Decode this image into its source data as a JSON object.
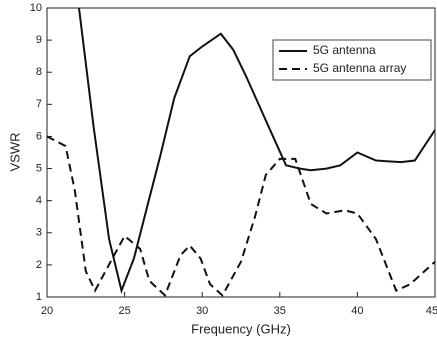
{
  "chart_data": {
    "type": "line",
    "x_label": "Frequency (GHz)",
    "y_label": "VSWR",
    "xlim": [
      20,
      45
    ],
    "xticks": [
      20,
      25,
      30,
      35,
      40,
      45
    ],
    "ylim": [
      1,
      10
    ],
    "yticks": [
      1,
      2,
      3,
      4,
      5,
      6,
      7,
      8,
      9,
      10
    ],
    "legend": "upper right",
    "series": [
      {
        "name": "5G antenna",
        "color": "#111111",
        "dash": "solid",
        "x": [
          22.06,
          23.0,
          24.0,
          24.8,
          25.6,
          26.5,
          27.3,
          28.2,
          29.2,
          30.0,
          31.2,
          32.0,
          32.8,
          34.1,
          35.4,
          36.3,
          37.0,
          38.0,
          38.9,
          40.0,
          41.2,
          42.8,
          43.7,
          45.0
        ],
        "values": [
          10,
          6.3,
          2.8,
          1.2,
          2.2,
          3.9,
          5.4,
          7.2,
          8.5,
          8.8,
          9.2,
          8.7,
          7.9,
          6.5,
          5.1,
          5.0,
          4.95,
          5.0,
          5.1,
          5.5,
          5.25,
          5.2,
          5.25,
          6.2
        ]
      },
      {
        "name": "5G antenna array",
        "color": "#111111",
        "dash": "dashed",
        "x": [
          20.0,
          21.2,
          21.8,
          22.5,
          23.1,
          24.1,
          25.0,
          26.0,
          26.6,
          27.6,
          28.6,
          29.2,
          29.9,
          30.5,
          31.3,
          32.5,
          33.4,
          34.1,
          35.0,
          36.0,
          37.0,
          38.0,
          39.2,
          40.0,
          41.2,
          42.5,
          43.4,
          45.0
        ],
        "values": [
          6.0,
          5.7,
          4.3,
          1.8,
          1.2,
          2.1,
          2.9,
          2.5,
          1.5,
          1.05,
          2.3,
          2.6,
          2.2,
          1.4,
          1.05,
          2.1,
          3.5,
          4.8,
          5.3,
          5.3,
          3.9,
          3.6,
          3.7,
          3.6,
          2.8,
          1.2,
          1.4,
          2.1
        ]
      }
    ]
  }
}
